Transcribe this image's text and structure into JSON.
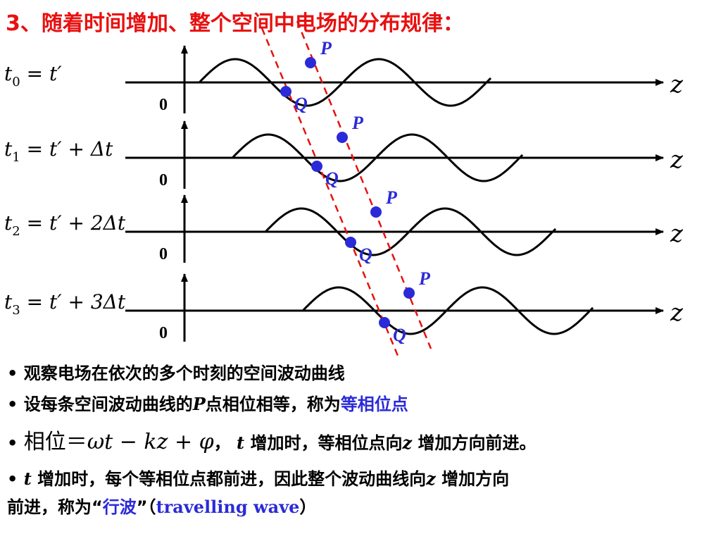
{
  "title": "3、随着时间增加、整个空间中电场的分布规律：",
  "axis_label": "z",
  "origin_label": "0",
  "point_p": "P",
  "point_q": "Q",
  "rows": [
    {
      "sub": "0",
      "rhs": "= t′"
    },
    {
      "sub": "1",
      "rhs": "= t′ + Δt"
    },
    {
      "sub": "2",
      "rhs": "= t′ + 2Δt"
    },
    {
      "sub": "3",
      "rhs": "= t′ + 3Δt"
    }
  ],
  "time_var": "t",
  "bullets": {
    "b1": "观察电场在依次的多个时刻的空间波动曲线",
    "b2_pre": "设每条空间波动曲线的",
    "b2_p": "P",
    "b2_mid": "点相位相等，称为",
    "b2_hl": "等相位点",
    "b3_phase": "相位＝",
    "b3_formula": "ωt − kz + φ",
    "b3_comma": "，",
    "b3_t": "t",
    "b3_mid": " 增加时，等相位点向",
    "b3_z": "z",
    "b3_end": " 增加方向前进。",
    "b4_t": "t",
    "b4_text": " 增加时，每个等相位点都前进，因此整个波动曲线向",
    "b4_z": "z",
    "b4_end": " 增加方向",
    "b5_pre": "前进，称为“",
    "b5_hl": "行波",
    "b5_mid": "”（",
    "b5_en": "travelling wave",
    "b5_end": "）"
  },
  "colors": {
    "title": "#e81010",
    "highlight": "#2a2ad8",
    "dashed": "#e81010",
    "point": "#2a2ad8"
  }
}
